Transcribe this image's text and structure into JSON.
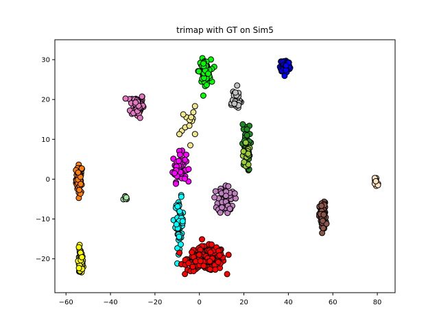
{
  "chart_data": {
    "type": "scatter",
    "title": "trimap with GT on Sim5",
    "xlabel": "",
    "ylabel": "",
    "xlim": [
      -65,
      88
    ],
    "ylim": [
      -28.5,
      35
    ],
    "xticks": [
      -60,
      -40,
      -20,
      0,
      20,
      40,
      60,
      80
    ],
    "yticks": [
      -20,
      -10,
      0,
      10,
      20,
      30
    ],
    "grid": false,
    "legend": "none",
    "marker": {
      "edgecolor": "#000000",
      "shape": "circle"
    },
    "clusters": [
      {
        "color": "#ff7f0e",
        "center": [
          -54,
          0
        ],
        "spread": [
          1.2,
          3.0
        ],
        "n": 60
      },
      {
        "color": "#ffff00",
        "center": [
          -53.5,
          -21
        ],
        "spread": [
          1.0,
          3.0
        ],
        "n": 45
      },
      {
        "color": "#a8e6a8",
        "center": [
          -33,
          -4.5
        ],
        "spread": [
          1.0,
          0.6
        ],
        "n": 6
      },
      {
        "color": "#e377c2",
        "center": [
          -28,
          18.5
        ],
        "spread": [
          2.5,
          2.5
        ],
        "n": 70
      },
      {
        "color": "#ff00ff",
        "center": [
          -9,
          3
        ],
        "spread": [
          2.5,
          3.0
        ],
        "n": 60
      },
      {
        "color": "#00ffff",
        "center": [
          -9,
          -11
        ],
        "spread": [
          1.5,
          5.0
        ],
        "n": 55
      },
      {
        "color": "#ff0000",
        "center": [
          3,
          -20
        ],
        "spread": [
          7.0,
          2.5
        ],
        "n": 220
      },
      {
        "color": "#00ff00",
        "center": [
          2.5,
          27
        ],
        "spread": [
          2.2,
          2.5
        ],
        "n": 80
      },
      {
        "color": "#0000ff",
        "center": [
          38.5,
          28.5
        ],
        "spread": [
          1.8,
          1.5
        ],
        "n": 70
      },
      {
        "color": "#bf7fbf",
        "center": [
          12,
          -5
        ],
        "spread": [
          3.0,
          3.0
        ],
        "n": 60
      },
      {
        "color": "#c0c0c0",
        "center": [
          16,
          20
        ],
        "spread": [
          2.5,
          2.5
        ],
        "n": 30
      },
      {
        "color": "#228b22",
        "center": [
          21,
          8
        ],
        "spread": [
          1.5,
          5.0
        ],
        "n": 40
      },
      {
        "color": "#9acd32",
        "center": [
          21,
          6
        ],
        "spread": [
          1.2,
          3.0
        ],
        "n": 20
      },
      {
        "color": "#8c564b",
        "center": [
          55.5,
          -9.5
        ],
        "spread": [
          1.2,
          3.0
        ],
        "n": 80
      },
      {
        "color": "#ffe4c4",
        "center": [
          79.5,
          -0.5
        ],
        "spread": [
          1.0,
          1.2
        ],
        "n": 18
      },
      {
        "color": "#f0e68c",
        "center": [
          -5,
          14
        ],
        "spread": [
          3.0,
          3.5
        ],
        "n": 14
      }
    ]
  }
}
